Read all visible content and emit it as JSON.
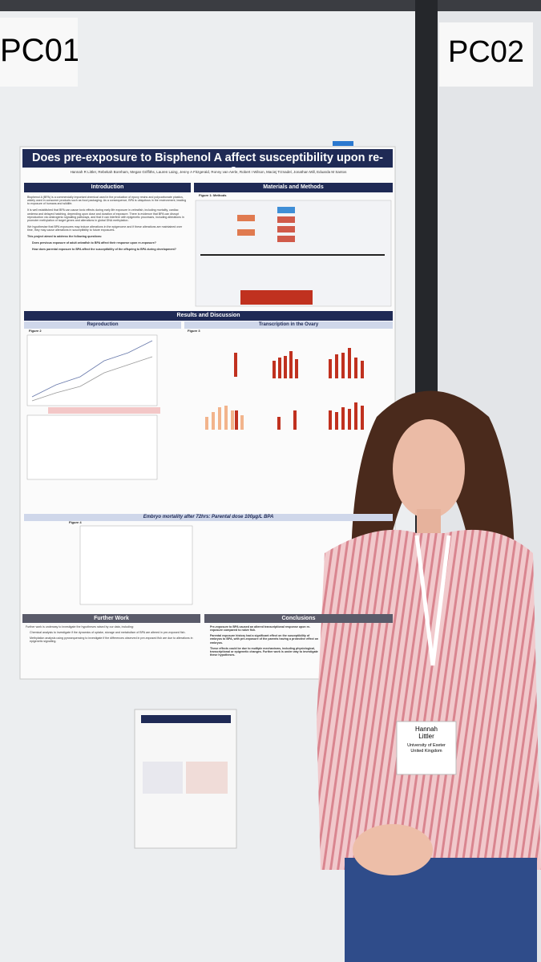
{
  "boards": [
    "PC01",
    "PC02"
  ],
  "poster": {
    "title": "Does pre-exposure to Bisphenol A affect susceptibility upon re-exposure?",
    "authors": "Hannah R Littler, Rebekah Boreham, Megan Griffiths, Lauren Laing, Jenny A Fitzgerald, Ronny van Aerle, Robert I Wilson, Maciej Trznadel, Jonathan Mill, Eduarda M Santos",
    "introduction": {
      "heading": "Introduction",
      "paragraphs": [
        "Bisphenol A (BPA) is a commercially important chemical used in the production of epoxy resins and polycarbonate plastics, widely used in consumer products such as food packaging. As a consequence, BPA is ubiquitous in the environment, leading to exposure of humans and wildlife.",
        "It is well established that BPA can cause toxic effects during early life exposure in zebrafish, including mortality, cardiac oedema and delayed hatching, depending upon dose and duration of exposure. There is evidence that BPA can disrupt reproduction via oestrogenic signalling pathways, and that it can interfere with epigenetic processes, including alterations in promoter methylation of target genes and alterations in global DNA methylation.",
        "We hypothesise that BPA exposures may induce alterations in the epigenome and if these alterations are maintained over time, they may cause alterations in susceptibility to future exposures.",
        "This project aimed to address the following questions:"
      ],
      "questions": [
        "Does previous exposure of adult zebrafish to BPA affect their response upon re-exposure?",
        "How does parental exposure to BPA affect the susceptibility of the offspring to BPA during development?"
      ]
    },
    "methods": {
      "heading": "Materials and Methods",
      "figure": "Figure 1: Methods"
    },
    "results": {
      "heading": "Results and Discussion",
      "reproduction": "Reproduction",
      "figure2": "Figure 2",
      "transcription": "Transcription in the Ovary",
      "figure3": "Figure 3",
      "embryo": "Embryo mortality after 72hrs: Parental dose 100µg/L BPA",
      "figure4": "Figure 4"
    },
    "further_work": {
      "heading": "Further Work",
      "items": [
        "Further work is underway to investigate the hypotheses raised by our data, including:",
        "Chemical analysis to investigate if the dynamics of uptake, storage and metabolism of BPA are altered in pre-exposed fish.",
        "Methylation analysis using pyrosequencing to investigate if the differences observed in pre-exposed fish are due to alterations in epigenetic signalling."
      ]
    },
    "conclusions": {
      "heading": "Conclusions",
      "items": [
        "Pre-exposure to BPA caused an altered transcriptional response upon re-exposure compared to naïve fish.",
        "Parental exposure history had a significant effect on the susceptibility of embryos to BPA, with pre-exposure of the parents having a protective effect on embryos.",
        "These effects could be due to multiple mechanisms, including physiological, transcriptional or epigenetic changes. Further work is under way to investigate these hypotheses."
      ]
    }
  },
  "badge": {
    "first_name": "Hannah",
    "last_name": "Littler",
    "affiliation": "University of Exeter",
    "country": "United Kingdom"
  }
}
